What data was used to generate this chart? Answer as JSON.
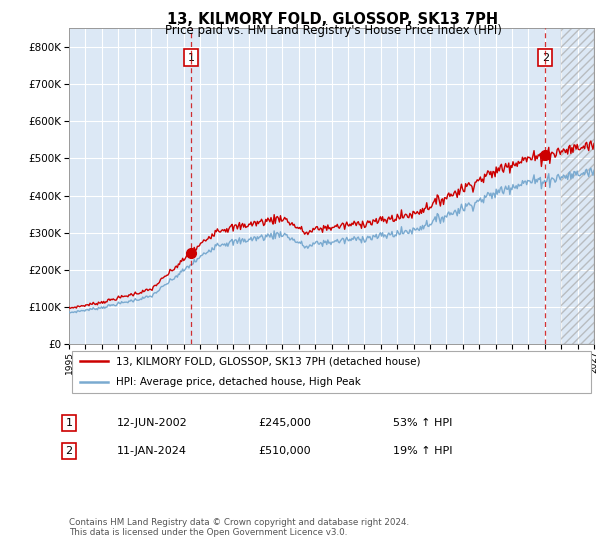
{
  "title": "13, KILMORY FOLD, GLOSSOP, SK13 7PH",
  "subtitle": "Price paid vs. HM Land Registry's House Price Index (HPI)",
  "legend_line1": "13, KILMORY FOLD, GLOSSOP, SK13 7PH (detached house)",
  "legend_line2": "HPI: Average price, detached house, High Peak",
  "sale1_date": "12-JUN-2002",
  "sale1_price": "£245,000",
  "sale1_hpi": "53% ↑ HPI",
  "sale2_date": "11-JAN-2024",
  "sale2_price": "£510,000",
  "sale2_hpi": "19% ↑ HPI",
  "footer": "Contains HM Land Registry data © Crown copyright and database right 2024.\nThis data is licensed under the Open Government Licence v3.0.",
  "hpi_color": "#7aaad0",
  "price_color": "#cc0000",
  "background_color": "#ffffff",
  "plot_bg_color": "#dce8f5",
  "grid_color": "#ffffff",
  "ylim": [
    0,
    850000
  ],
  "yticks": [
    0,
    100000,
    200000,
    300000,
    400000,
    500000,
    600000,
    700000,
    800000
  ],
  "sale1_x": 2002.44,
  "sale1_y": 245000,
  "sale2_x": 2024.03,
  "sale2_y": 510000,
  "xmin": 1995,
  "xmax": 2027,
  "hatch_start": 2025.0
}
